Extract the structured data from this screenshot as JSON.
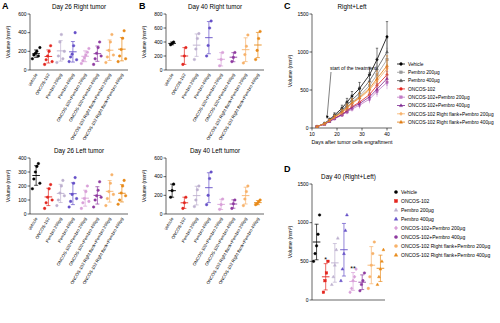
{
  "chart_data": [
    {
      "type": "dot",
      "panel": "A",
      "title": "Day 26 Right tumor",
      "y_label": "Volume (mm³)",
      "marker": "circle",
      "categories": [
        "Vehicle",
        "ONCOS-102",
        "Pembro 200µg",
        "Pembro 400µg",
        "ONCOS-102+Pembro 200µg",
        "ONCOS-102+Pembro 400µg",
        "ONCOS-102 Right flank+Pembro 200µg",
        "ONCOS-102 Right flank+Pembro 400µg"
      ],
      "colors": [
        "#000000",
        "#e3261f",
        "#bdb0cf",
        "#6650c8",
        "#d9a0d8",
        "#8e3aa0",
        "#f7b26b",
        "#e88a1a"
      ],
      "values": [
        [
          120,
          160,
          180,
          200,
          150,
          240
        ],
        [
          60,
          110,
          150,
          200,
          260,
          90
        ],
        [
          80,
          150,
          300,
          380,
          120,
          200
        ],
        [
          90,
          140,
          170,
          260,
          400,
          110
        ],
        [
          70,
          100,
          130,
          160,
          190,
          230
        ],
        [
          60,
          120,
          180,
          240,
          300,
          150
        ],
        [
          80,
          140,
          210,
          300,
          380,
          160
        ],
        [
          90,
          150,
          220,
          340,
          420,
          120
        ]
      ],
      "means": [
        175,
        145,
        205,
        195,
        147,
        175,
        212,
        223
      ],
      "errors": [
        40,
        70,
        110,
        110,
        58,
        82,
        110,
        125
      ],
      "ylim": [
        0,
        600
      ],
      "yticks": [
        0,
        200,
        400,
        600
      ]
    },
    {
      "type": "dot",
      "panel": "B",
      "title": "Day 40 Right tumor",
      "y_label": "Volume (mm³)",
      "marker": "circle",
      "categories": [
        "Vehicle",
        "ONCOS-102",
        "Pembro 200µg",
        "Pembro 400µg",
        "ONCOS-102+Pembro 200µg",
        "ONCOS-102+Pembro 400µg",
        "ONCOS-102 Right flank+Pembro 200µg",
        "ONCOS-102 Right flank+Pembro 400µg"
      ],
      "colors": [
        "#000000",
        "#e3261f",
        "#bdb0cf",
        "#6650c8",
        "#d9a0d8",
        "#8e3aa0",
        "#f7b26b",
        "#e88a1a"
      ],
      "values": [
        [
          360,
          380,
          400
        ],
        [
          80,
          200,
          320
        ],
        [
          150,
          300,
          450,
          520
        ],
        [
          200,
          350,
          600,
          700
        ],
        [
          60,
          150,
          250
        ],
        [
          120,
          180,
          250
        ],
        [
          100,
          220,
          340,
          500
        ],
        [
          150,
          280,
          450,
          550
        ]
      ],
      "means": [
        380,
        200,
        355,
        462,
        153,
        183,
        290,
        357
      ],
      "errors": [
        20,
        120,
        160,
        230,
        95,
        65,
        170,
        180
      ],
      "ylim": [
        0,
        800
      ],
      "yticks": [
        0,
        200,
        400,
        600,
        800
      ]
    },
    {
      "type": "dot",
      "title": "Day 26 Left tumor",
      "y_label": "Volume (mm³)",
      "marker": "circle",
      "categories": [
        "Vehicle",
        "ONCOS-102",
        "Pembro 200µg",
        "Pembro 400µg",
        "ONCOS-102+Pembro 200µg",
        "ONCOS-102+Pembro 400µg",
        "ONCOS-102 Right flank+Pembro 200µg",
        "ONCOS-102 Right flank+Pembro 400µg"
      ],
      "colors": [
        "#000000",
        "#e3261f",
        "#bdb0cf",
        "#6650c8",
        "#d9a0d8",
        "#8e3aa0",
        "#f7b26b",
        "#e88a1a"
      ],
      "values": [
        [
          180,
          250,
          300,
          340,
          360,
          220
        ],
        [
          40,
          80,
          120,
          180,
          210,
          100
        ],
        [
          60,
          100,
          150,
          200,
          240,
          130
        ],
        [
          50,
          90,
          140,
          220,
          260,
          110
        ],
        [
          40,
          80,
          110,
          160,
          200,
          90
        ],
        [
          50,
          100,
          130,
          170,
          230,
          120
        ],
        [
          60,
          110,
          160,
          220,
          280,
          140
        ],
        [
          70,
          100,
          150,
          200,
          240,
          130
        ]
      ],
      "means": [
        275,
        122,
        147,
        145,
        113,
        133,
        162,
        148
      ],
      "errors": [
        70,
        62,
        65,
        78,
        57,
        62,
        77,
        62
      ],
      "ylim": [
        0,
        400
      ],
      "yticks": [
        0,
        100,
        200,
        300,
        400
      ]
    },
    {
      "type": "dot",
      "title": "Day 40 Left tumor",
      "y_label": "Volume (mm³)",
      "marker": "circle",
      "categories": [
        "Vehicle",
        "ONCOS-102",
        "Pembro 200µg",
        "Pembro 400µg",
        "ONCOS-102+Pembro 200µg",
        "ONCOS-102+Pembro 400µg",
        "ONCOS-102 Right flank+Pembro 200µg",
        "ONCOS-102 Right flank+Pembro 400µg"
      ],
      "colors": [
        "#000000",
        "#e3261f",
        "#bdb0cf",
        "#6650c8",
        "#d9a0d8",
        "#8e3aa0",
        "#f7b26b",
        "#e88a1a"
      ],
      "values": [
        [
          180,
          250,
          320
        ],
        [
          60,
          120,
          180
        ],
        [
          80,
          150,
          260,
          300
        ],
        [
          100,
          200,
          380,
          450
        ],
        [
          50,
          100,
          160
        ],
        [
          60,
          110,
          150
        ],
        [
          90,
          160,
          240,
          300
        ],
        [
          100,
          110,
          130,
          150
        ]
      ],
      "means": [
        250,
        120,
        197,
        282,
        103,
        107,
        197,
        122
      ],
      "errors": [
        70,
        60,
        100,
        160,
        55,
        45,
        90,
        22
      ],
      "ylim": [
        0,
        600
      ],
      "yticks": [
        0,
        200,
        400,
        600
      ]
    },
    {
      "type": "line",
      "panel": "C",
      "title": "Right+Left",
      "x_label": "Days after tumor cells engraftment",
      "y_label": "Volume (mm³)",
      "legend": "right",
      "annotations": [
        {
          "text": "start of the treatment",
          "x": 16
        }
      ],
      "x": [
        12,
        15,
        17,
        19,
        22,
        24,
        26,
        29,
        33,
        36,
        40
      ],
      "xlim": [
        10,
        42
      ],
      "xticks": [
        10,
        20,
        30,
        40
      ],
      "ylim": [
        0,
        1500
      ],
      "yticks": [
        0,
        500,
        1000,
        1500
      ],
      "series": [
        {
          "name": "Vehicle",
          "color": "#000000",
          "marker": "circle",
          "values": [
            20,
            60,
            110,
            170,
            260,
            340,
            420,
            520,
            700,
            900,
            1200
          ],
          "errors": [
            5,
            15,
            20,
            30,
            40,
            50,
            60,
            80,
            100,
            150,
            200
          ]
        },
        {
          "name": "Pembro 200µg",
          "color": "#9a9a9a",
          "marker": "square",
          "values": [
            20,
            55,
            100,
            150,
            220,
            280,
            340,
            420,
            560,
            700,
            900
          ],
          "errors": [
            5,
            15,
            20,
            30,
            40,
            50,
            60,
            70,
            90,
            110,
            150
          ]
        },
        {
          "name": "Pembro 400µg",
          "color": "#555555",
          "marker": "triangle",
          "values": [
            20,
            55,
            100,
            155,
            230,
            300,
            370,
            460,
            620,
            780,
            1000
          ],
          "errors": [
            5,
            15,
            20,
            30,
            45,
            55,
            65,
            80,
            110,
            140,
            180
          ]
        },
        {
          "name": "ONCOS-102",
          "color": "#e3261f",
          "marker": "circle",
          "values": [
            20,
            50,
            90,
            130,
            180,
            230,
            280,
            340,
            440,
            560,
            700
          ],
          "errors": [
            5,
            10,
            15,
            20,
            30,
            35,
            40,
            50,
            60,
            80,
            100
          ]
        },
        {
          "name": "ONCOS-102+Pembro 200µg",
          "color": "#c27bc6",
          "marker": "square",
          "values": [
            20,
            50,
            85,
            120,
            170,
            210,
            250,
            300,
            380,
            480,
            600
          ],
          "errors": [
            5,
            10,
            15,
            20,
            25,
            30,
            35,
            45,
            55,
            70,
            90
          ]
        },
        {
          "name": "ONCOS-102+Pembro 400µg",
          "color": "#7d2a92",
          "marker": "triangle",
          "values": [
            20,
            50,
            85,
            125,
            175,
            220,
            270,
            320,
            410,
            510,
            650
          ],
          "errors": [
            5,
            10,
            15,
            20,
            25,
            30,
            40,
            50,
            60,
            75,
            95
          ]
        },
        {
          "name": "ONCOS-102 Right flank+Pembro 200µg",
          "color": "#f7b26b",
          "marker": "diamond",
          "values": [
            20,
            55,
            95,
            140,
            200,
            260,
            320,
            390,
            500,
            620,
            780
          ],
          "errors": [
            5,
            12,
            18,
            25,
            35,
            40,
            50,
            60,
            75,
            95,
            120
          ]
        },
        {
          "name": "ONCOS-102 Right flank+Pembro 400µg",
          "color": "#e07b10",
          "marker": "triangle",
          "values": [
            20,
            55,
            95,
            145,
            210,
            270,
            330,
            400,
            520,
            650,
            820
          ],
          "errors": [
            5,
            12,
            18,
            25,
            35,
            45,
            55,
            65,
            80,
            100,
            130
          ]
        }
      ]
    },
    {
      "type": "dot",
      "panel": "D",
      "title": "Day 40 (Right+Left)",
      "y_label": "Volume (mm³)",
      "legend": "right",
      "tick_labels": "y",
      "ylim": [
        0,
        1500
      ],
      "yticks": [
        0,
        500,
        1000,
        1500
      ],
      "annotations": [
        {
          "text": "*",
          "series": 1
        },
        {
          "text": "**",
          "series": 4
        }
      ],
      "series": [
        {
          "name": "Vehicle",
          "color": "#000000",
          "marker": "circle",
          "values": [
            500,
            600,
            700,
            850,
            1100
          ],
          "mean": 750,
          "error": 230
        },
        {
          "name": "ONCOS-102",
          "color": "#e3261f",
          "marker": "square",
          "values": [
            100,
            250,
            350,
            500
          ],
          "mean": 300,
          "error": 170
        },
        {
          "name": "Pembro 200µg",
          "color": "#bdb0cf",
          "marker": "triangle",
          "values": [
            200,
            300,
            450,
            650,
            800
          ],
          "mean": 480,
          "error": 250
        },
        {
          "name": "Pembro 400µg",
          "color": "#6650c8",
          "marker": "triangle",
          "values": [
            250,
            400,
            600,
            900,
            1100
          ],
          "mean": 650,
          "error": 340
        },
        {
          "name": "ONCOS-102+Pembro 200µg",
          "color": "#d9a0d8",
          "marker": "diamond",
          "values": [
            100,
            150,
            250,
            300,
            400
          ],
          "mean": 240,
          "error": 115
        },
        {
          "name": "ONCOS-102+Pembro 400µg",
          "color": "#8e3aa0",
          "marker": "circle",
          "values": [
            120,
            200,
            250,
            350
          ],
          "mean": 230,
          "error": 95
        },
        {
          "name": "ONCOS-102 Right flank+Pembro 200µg",
          "color": "#f7b26b",
          "marker": "circle",
          "values": [
            150,
            300,
            450,
            600,
            750
          ],
          "mean": 450,
          "error": 240
        },
        {
          "name": "ONCOS-102 Right flank+Pembro 400µg",
          "color": "#e88a1a",
          "marker": "triangle",
          "values": [
            200,
            300,
            400,
            500,
            650
          ],
          "mean": 410,
          "error": 170
        }
      ]
    }
  ]
}
